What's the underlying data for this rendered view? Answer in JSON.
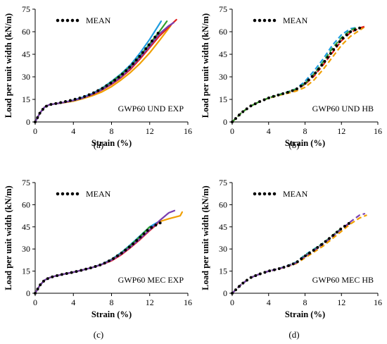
{
  "chart_data": [
    {
      "type": "line",
      "caption": "(a)",
      "annotation": "GWP60 UND EXP",
      "legend": "MEAN",
      "xlabel": "Strain (%)",
      "ylabel": "Load per unit width (kN/m)",
      "xlim": [
        0,
        16
      ],
      "ylim": [
        0,
        75
      ],
      "xticks": [
        "0",
        "4",
        "8",
        "12",
        "16"
      ],
      "yticks": [
        "0",
        "15",
        "30",
        "45",
        "60",
        "75"
      ],
      "series": [
        {
          "style": "solid",
          "color": "#1f9de0",
          "x": [
            0,
            0.5,
            1,
            1.5,
            2,
            3,
            4,
            5,
            6,
            7,
            8,
            9,
            10,
            11,
            12,
            13.2
          ],
          "y": [
            0,
            6,
            10,
            11.5,
            12,
            13,
            14.5,
            16.5,
            19,
            22.5,
            27,
            32,
            38,
            46,
            55,
            67
          ]
        },
        {
          "style": "solid",
          "color": "#f0a000",
          "x": [
            0,
            0.5,
            1,
            1.5,
            2,
            3,
            4,
            5,
            6,
            7,
            8,
            9,
            10,
            11,
            12,
            13,
            14.2
          ],
          "y": [
            0,
            6,
            10,
            11.5,
            12,
            12.8,
            13.8,
            15.5,
            17.5,
            20,
            23.5,
            28,
            33,
            39,
            46,
            54,
            64
          ]
        },
        {
          "style": "solid",
          "color": "#e02020",
          "x": [
            0,
            0.5,
            1,
            1.5,
            2,
            3,
            4,
            5,
            6,
            7,
            8,
            9,
            10,
            11,
            12,
            13,
            14.3,
            14.8
          ],
          "y": [
            0,
            6,
            10,
            11.5,
            12,
            13,
            14.3,
            16,
            18.3,
            21.3,
            25,
            29.5,
            35,
            42,
            49.5,
            57,
            65,
            68
          ]
        },
        {
          "style": "solid",
          "color": "#2e9e2e",
          "x": [
            0,
            0.5,
            1,
            1.5,
            2,
            3,
            4,
            5,
            6,
            7,
            8,
            9,
            10,
            11,
            12,
            13,
            13.8
          ],
          "y": [
            0,
            6,
            10,
            11.5,
            12,
            13,
            14.3,
            16,
            18.5,
            22,
            26.5,
            31.5,
            37,
            44,
            52,
            60,
            67
          ]
        },
        {
          "style": "solid",
          "color": "#7a3fb0",
          "x": [
            0,
            0.5,
            1,
            1.5,
            2,
            3,
            4,
            5,
            6,
            7,
            8,
            9,
            10,
            11,
            12,
            13,
            14,
            14.5
          ],
          "y": [
            0,
            6,
            10,
            11.5,
            12,
            13,
            14.3,
            16,
            18.5,
            21.5,
            25.5,
            30,
            36,
            43,
            50.5,
            58.5,
            64,
            66
          ]
        },
        {
          "style": "mean",
          "color": "#000000",
          "x": [
            0,
            0.5,
            1,
            1.5,
            2,
            3,
            4,
            5,
            6,
            7,
            8,
            9,
            10,
            11,
            12,
            13
          ],
          "y": [
            0,
            6,
            10,
            11.5,
            12,
            13.3,
            14.8,
            16.5,
            19,
            22.2,
            26.2,
            31,
            37,
            44,
            52,
            60
          ]
        }
      ]
    },
    {
      "type": "line",
      "caption": "(b)",
      "annotation": "GWP60 UND HB",
      "legend": "MEAN",
      "xlabel": "Strain (%)",
      "ylabel": "Load per unit width (kN/m)",
      "xlim": [
        0,
        16
      ],
      "ylim": [
        0,
        75
      ],
      "xticks": [
        "0",
        "4",
        "8",
        "12",
        "16"
      ],
      "yticks": [
        "0",
        "15",
        "30",
        "45",
        "60",
        "75"
      ],
      "series": [
        {
          "style": "dashed",
          "color": "#1f9de0",
          "x": [
            0,
            0.5,
            1,
            2,
            3,
            4,
            5,
            6,
            7,
            8,
            9,
            10,
            11,
            12,
            13,
            13.8
          ],
          "y": [
            0,
            3,
            6,
            10.5,
            13.5,
            16,
            18,
            19.8,
            22,
            27,
            34,
            42,
            51,
            58,
            62,
            63
          ]
        },
        {
          "style": "dashed",
          "color": "#f0a000",
          "x": [
            0,
            0.5,
            1,
            2,
            3,
            4,
            5,
            6,
            7,
            8,
            9,
            10,
            11,
            12,
            13,
            14,
            14.5
          ],
          "y": [
            0,
            3,
            6,
            10.5,
            13.5,
            15.8,
            17.5,
            19,
            20.5,
            23,
            28,
            35,
            43,
            51,
            57,
            61,
            63
          ]
        },
        {
          "style": "dashed",
          "color": "#e02020",
          "x": [
            0,
            0.5,
            1,
            2,
            3,
            4,
            5,
            6,
            7,
            8,
            9,
            10,
            11,
            12,
            13,
            14,
            14.8
          ],
          "y": [
            0,
            3,
            6,
            10.5,
            13.5,
            16,
            17.8,
            19.5,
            21.5,
            25,
            30.5,
            38,
            46,
            54,
            59.5,
            62.5,
            64
          ]
        },
        {
          "style": "dashed",
          "color": "#2e9e2e",
          "x": [
            0,
            0.5,
            1,
            2,
            3,
            4,
            5,
            6,
            7,
            8,
            9,
            10,
            11,
            12,
            13,
            13.6
          ],
          "y": [
            0,
            3,
            6,
            10.5,
            13.5,
            16,
            17.8,
            19.6,
            21.8,
            25.5,
            32,
            40,
            49,
            56,
            61,
            62.5
          ]
        },
        {
          "style": "mean",
          "color": "#000000",
          "x": [
            0,
            0.5,
            1,
            2,
            3,
            4,
            5,
            6,
            7,
            8,
            9,
            10,
            11,
            12,
            13,
            14,
            14.5
          ],
          "y": [
            0,
            3,
            6,
            10.5,
            13.5,
            16,
            17.8,
            19.5,
            21.6,
            25.6,
            31.5,
            39,
            47,
            55,
            60,
            62.5,
            63
          ]
        }
      ]
    },
    {
      "type": "line",
      "caption": "(c)",
      "annotation": "GWP60 MEC EXP",
      "legend": "MEAN",
      "xlabel": "Strain (%)",
      "ylabel": "Load per unit width (kN/m)",
      "xlim": [
        0,
        16
      ],
      "ylim": [
        0,
        75
      ],
      "xticks": [
        "0",
        "4",
        "8",
        "12",
        "16"
      ],
      "yticks": [
        "0",
        "15",
        "30",
        "45",
        "60",
        "75"
      ],
      "series": [
        {
          "style": "solid",
          "color": "#1f9de0",
          "x": [
            0,
            0.5,
            1,
            1.5,
            2,
            3,
            4,
            5,
            6,
            7,
            8,
            9,
            10,
            11,
            12,
            12.8
          ],
          "y": [
            0,
            5.5,
            9,
            10.5,
            11.5,
            13,
            14.3,
            15.8,
            17.5,
            19.8,
            23,
            27.5,
            33,
            39,
            45,
            48
          ]
        },
        {
          "style": "solid",
          "color": "#f0a000",
          "x": [
            0,
            0.5,
            1,
            1.5,
            2,
            3,
            4,
            5,
            6,
            7,
            8,
            9,
            10,
            11,
            12,
            13,
            14,
            14.6,
            15.2,
            15.4
          ],
          "y": [
            0,
            5.5,
            9,
            10.5,
            11.5,
            13,
            14.3,
            15.8,
            17.5,
            19.6,
            22.5,
            26.5,
            31.5,
            37,
            43,
            48.5,
            50.5,
            51.5,
            52.5,
            55
          ]
        },
        {
          "style": "solid",
          "color": "#e02020",
          "x": [
            0,
            0.5,
            1,
            1.5,
            2,
            3,
            4,
            5,
            6,
            7,
            8,
            9,
            10,
            11,
            12,
            12.8
          ],
          "y": [
            0,
            5.5,
            9,
            10.5,
            11.5,
            13,
            14.3,
            15.8,
            17.5,
            19.5,
            22,
            26,
            31,
            36.5,
            42.5,
            47
          ]
        },
        {
          "style": "solid",
          "color": "#2e9e2e",
          "x": [
            0,
            0.5,
            1,
            1.5,
            2,
            3,
            4,
            5,
            6,
            7,
            8,
            9,
            10,
            11,
            12
          ],
          "y": [
            0,
            5.5,
            9,
            10.5,
            11.5,
            13,
            14.3,
            15.8,
            17.5,
            19.6,
            22.8,
            27,
            32.5,
            38.5,
            45
          ]
        },
        {
          "style": "solid",
          "color": "#7a3fb0",
          "x": [
            0,
            0.5,
            1,
            1.5,
            2,
            3,
            4,
            5,
            6,
            7,
            8,
            9,
            10,
            11,
            12,
            13,
            14,
            14.6
          ],
          "y": [
            0,
            5.5,
            9,
            10.5,
            11.5,
            13,
            14.3,
            15.8,
            17.5,
            19.6,
            22.5,
            26.5,
            31.5,
            37,
            43,
            49,
            54.5,
            56
          ]
        },
        {
          "style": "mean",
          "color": "#000000",
          "x": [
            0,
            0.5,
            1,
            1.5,
            2,
            3,
            4,
            5,
            6,
            7,
            8,
            9,
            10,
            11,
            12,
            13.2
          ],
          "y": [
            0,
            5.5,
            9,
            10.5,
            11.5,
            13,
            14.3,
            15.8,
            17.5,
            19.6,
            22.7,
            27,
            32,
            38,
            44,
            48
          ]
        }
      ]
    },
    {
      "type": "line",
      "caption": "(d)",
      "annotation": "GWP60 MEC HB",
      "legend": "MEAN",
      "xlabel": "Strain (%)",
      "ylabel": "Load per unit width (kN/m)",
      "xlim": [
        0,
        16
      ],
      "ylim": [
        0,
        75
      ],
      "xticks": [
        "0",
        "4",
        "8",
        "12",
        "16"
      ],
      "yticks": [
        "0",
        "15",
        "30",
        "45",
        "60",
        "75"
      ],
      "series": [
        {
          "style": "dashed",
          "color": "#1f9de0",
          "x": [
            0,
            0.5,
            1,
            2,
            3,
            4,
            5,
            6,
            7,
            8,
            9,
            10,
            11,
            12,
            12.6
          ],
          "y": [
            0,
            3,
            6,
            10.5,
            13,
            15,
            16.5,
            18.5,
            21,
            26,
            30,
            34,
            39,
            44,
            46
          ]
        },
        {
          "style": "dashed",
          "color": "#f0a000",
          "x": [
            0,
            0.5,
            1,
            2,
            3,
            4,
            5,
            6,
            7,
            8,
            9,
            10,
            11,
            12,
            13,
            14,
            14.8
          ],
          "y": [
            0,
            3,
            6,
            10.5,
            13,
            15,
            16.3,
            18,
            20,
            24,
            28,
            32,
            37,
            42,
            47,
            51,
            53
          ]
        },
        {
          "style": "dashed",
          "color": "#e02020",
          "x": [
            0,
            0.5,
            1,
            2,
            3,
            4,
            5,
            6,
            7,
            8,
            9,
            10,
            11,
            12,
            12.8
          ],
          "y": [
            0,
            3,
            6,
            10.5,
            13,
            15,
            16.4,
            18.2,
            20.5,
            25,
            29,
            33.5,
            38.5,
            43.5,
            47
          ]
        },
        {
          "style": "dashed",
          "color": "#2e9e2e",
          "x": [
            0,
            0.5,
            1,
            2,
            3,
            4,
            5,
            6,
            7,
            8,
            9,
            10,
            11,
            12,
            12.4
          ],
          "y": [
            0,
            3,
            6,
            10.5,
            13,
            15,
            16.5,
            18.3,
            20.8,
            25.5,
            29.5,
            34,
            39,
            44,
            45.5
          ]
        },
        {
          "style": "dashed",
          "color": "#7a3fb0",
          "x": [
            0,
            0.5,
            1,
            2,
            3,
            4,
            5,
            6,
            7,
            8,
            9,
            10,
            11,
            12,
            13,
            14,
            14.6
          ],
          "y": [
            0,
            3,
            6,
            10.5,
            13,
            15,
            16.4,
            18.2,
            20.5,
            25,
            29,
            33.5,
            38.5,
            43.5,
            48.5,
            53,
            54
          ]
        },
        {
          "style": "mean",
          "color": "#000000",
          "x": [
            0,
            0.5,
            1,
            2,
            3,
            4,
            5,
            6,
            7,
            8,
            9,
            10,
            11,
            12,
            13
          ],
          "y": [
            0,
            3,
            6,
            10.5,
            13,
            15,
            16.4,
            18.2,
            20.6,
            25.2,
            29.3,
            33.8,
            38.8,
            44,
            48
          ]
        }
      ]
    }
  ]
}
